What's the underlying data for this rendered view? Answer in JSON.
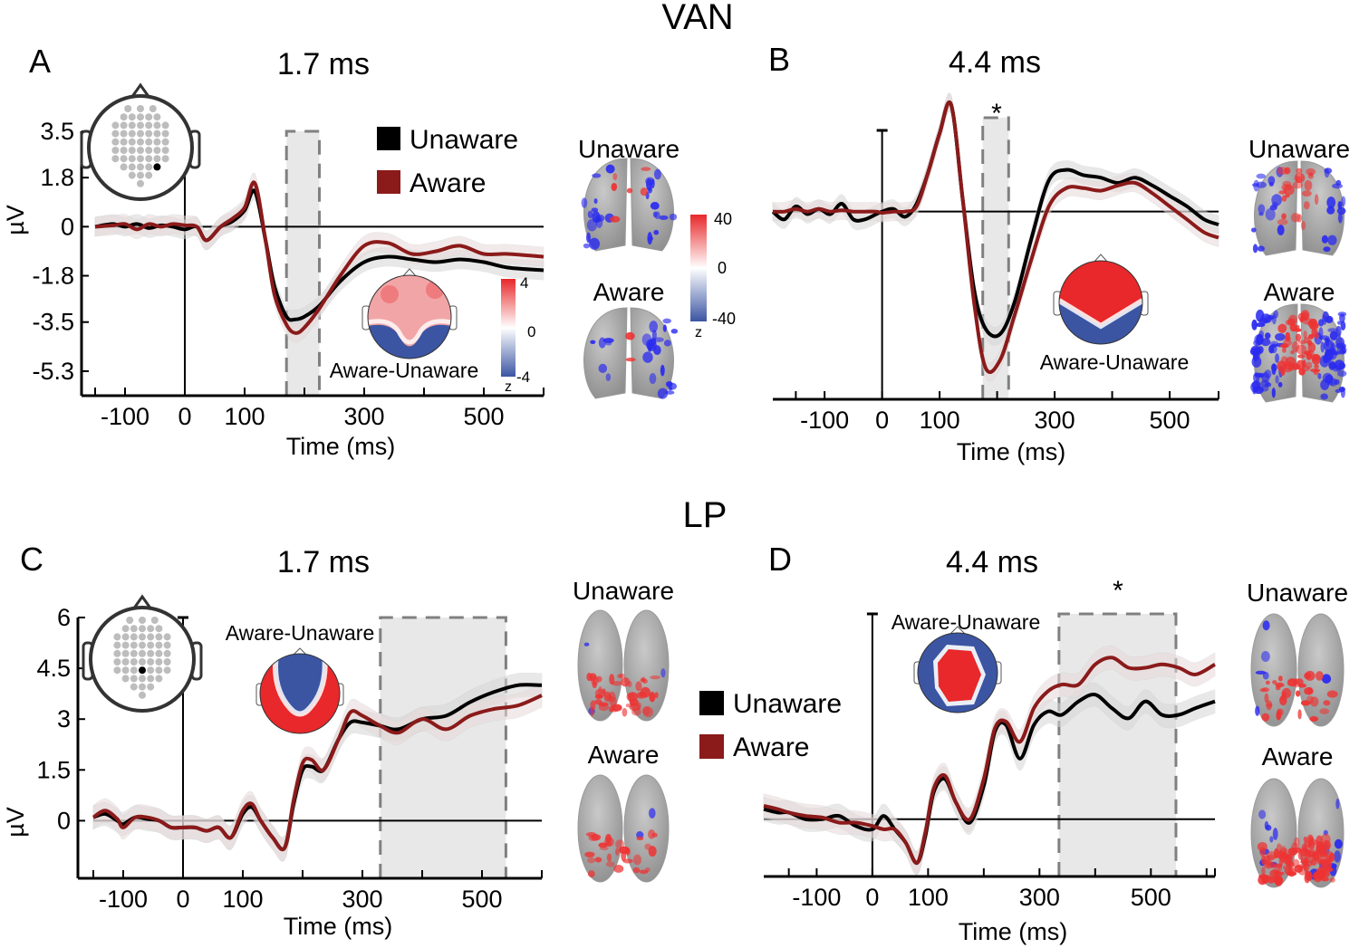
{
  "figure": {
    "group_titles": {
      "top": "VAN",
      "bottom": "LP"
    },
    "legend": {
      "unaware": "Unaware",
      "aware": "Aware"
    },
    "colors": {
      "unaware": "#000000",
      "aware": "#8b1a1a",
      "window_fill": "#e8e8e8",
      "window_stroke": "#808080",
      "topo_red": "#e8282a",
      "topo_blue": "#3b55a3",
      "brain_gray": "#a9a9a9",
      "source_blue": "#2b2bf0"
    },
    "topo_label": "Aware-Unaware",
    "brain_labels": {
      "unaware": "Unaware",
      "aware": "Aware"
    },
    "colorbar_small": {
      "max": "4",
      "mid": "0",
      "min": "-4",
      "unit": "z"
    },
    "colorbar_large": {
      "max": "40",
      "mid": "0",
      "min": "-40",
      "unit": "z"
    }
  },
  "chart_data": [
    {
      "panel": "A",
      "type": "line",
      "title": "1.7 ms",
      "xlabel": "Time (ms)",
      "ylabel": "µV",
      "xlim": [
        -150,
        600
      ],
      "ylim": [
        -6.2,
        3.5
      ],
      "x_ticks": [
        "-100",
        "0",
        "100",
        "300",
        "500"
      ],
      "y_ticks": [
        "3.5",
        "1.8",
        "0",
        "-1.8",
        "-3.5",
        "-5.3"
      ],
      "significance_window_ms": [
        170,
        225
      ],
      "significant": false,
      "legend": "top-right",
      "series": [
        {
          "name": "Unaware",
          "x": [
            -150,
            -120,
            -100,
            -80,
            -60,
            -40,
            -20,
            0,
            20,
            36,
            60,
            80,
            100,
            117,
            135,
            150,
            170,
            185,
            200,
            225,
            260,
            300,
            340,
            380,
            420,
            460,
            500,
            540,
            600
          ],
          "y": [
            0,
            0.1,
            0,
            0.1,
            -0.05,
            0.05,
            0,
            -0.1,
            0,
            -0.5,
            0,
            0.2,
            0.6,
            1.3,
            -0.5,
            -2.2,
            -3.3,
            -3.4,
            -3.3,
            -2.9,
            -2.0,
            -1.3,
            -1.1,
            -1.2,
            -1.3,
            -1.2,
            -1.3,
            -1.5,
            -1.6
          ]
        },
        {
          "name": "Aware",
          "x": [
            -150,
            -120,
            -100,
            -80,
            -60,
            -40,
            -20,
            0,
            20,
            36,
            60,
            80,
            100,
            117,
            135,
            150,
            170,
            185,
            200,
            225,
            260,
            300,
            340,
            380,
            420,
            460,
            500,
            540,
            600
          ],
          "y": [
            0,
            0.05,
            0.1,
            -0.1,
            0.1,
            0.0,
            0.1,
            0.05,
            0,
            -0.5,
            0,
            0.3,
            0.7,
            1.6,
            -0.5,
            -2.5,
            -3.6,
            -3.9,
            -3.7,
            -3.0,
            -1.8,
            -0.7,
            -0.6,
            -1.0,
            -0.9,
            -0.7,
            -1.0,
            -1.0,
            -1.1
          ]
        }
      ],
      "electrode": "right parieto-occipital"
    },
    {
      "panel": "B",
      "type": "line",
      "title": "4.4 ms",
      "xlabel": "Time (ms)",
      "ylabel": "",
      "xlim": [
        -190,
        585
      ],
      "ylim": [
        -7.2,
        3.6
      ],
      "x_ticks": [
        "-100",
        "0",
        "100",
        "300",
        "500"
      ],
      "y_ticks": [],
      "significance_window_ms": [
        175,
        220
      ],
      "significant": true,
      "annotation": "*",
      "series": [
        {
          "name": "Unaware",
          "x": [
            -190,
            -170,
            -150,
            -130,
            -110,
            -90,
            -70,
            -50,
            -30,
            -10,
            0,
            20,
            40,
            60,
            80,
            100,
            120,
            140,
            160,
            180,
            205,
            230,
            260,
            290,
            320,
            350,
            380,
            410,
            440,
            470,
            500,
            530,
            560,
            585
          ],
          "y": [
            0,
            -0.3,
            0.2,
            -0.1,
            0.1,
            -0.1,
            0.3,
            -0.3,
            -0.3,
            -0.1,
            0,
            0.1,
            -0.2,
            0.3,
            1.5,
            3.0,
            4.1,
            0.5,
            -3.0,
            -4.5,
            -4.7,
            -3.5,
            -1.0,
            1.2,
            1.6,
            1.4,
            1.3,
            1.1,
            1.3,
            1.0,
            0.6,
            0.2,
            -0.3,
            -0.5
          ]
        },
        {
          "name": "Aware",
          "x": [
            -190,
            -170,
            -150,
            -130,
            -110,
            -90,
            -70,
            -50,
            -30,
            -10,
            0,
            20,
            40,
            60,
            80,
            100,
            120,
            140,
            160,
            180,
            205,
            230,
            260,
            290,
            320,
            350,
            380,
            410,
            440,
            470,
            500,
            530,
            560,
            585
          ],
          "y": [
            0,
            0,
            0.1,
            0,
            0.1,
            0,
            0.05,
            0,
            0,
            0,
            -0.05,
            0,
            0,
            0.2,
            1.5,
            3.0,
            4.1,
            0.5,
            -3.5,
            -6.0,
            -5.7,
            -4.0,
            -1.8,
            0.2,
            0.9,
            0.9,
            0.8,
            1.0,
            1.1,
            0.7,
            0.2,
            -0.3,
            -0.8,
            -1.0
          ]
        }
      ]
    },
    {
      "panel": "C",
      "type": "line",
      "title": "1.7 ms",
      "xlabel": "Time (ms)",
      "ylabel": "µV",
      "xlim": [
        -150,
        600
      ],
      "ylim": [
        -1.7,
        6
      ],
      "x_ticks": [
        "-100",
        "0",
        "100",
        "300",
        "500"
      ],
      "y_ticks": [
        "6",
        "4.5",
        "3",
        "1.5",
        "0"
      ],
      "significance_window_ms": [
        330,
        540
      ],
      "significant": false,
      "series": [
        {
          "name": "Unaware",
          "x": [
            -150,
            -130,
            -110,
            -100,
            -80,
            -60,
            -40,
            -20,
            0,
            20,
            40,
            60,
            80,
            100,
            115,
            130,
            150,
            170,
            185,
            200,
            215,
            235,
            260,
            280,
            300,
            330,
            360,
            400,
            440,
            480,
            520,
            560,
            600
          ],
          "y": [
            0.1,
            0.2,
            0,
            -0.1,
            0.1,
            0.05,
            0,
            -0.2,
            -0.2,
            -0.2,
            -0.3,
            -0.2,
            -0.5,
            0.2,
            0.4,
            0.0,
            -0.5,
            -0.8,
            0.5,
            1.5,
            1.6,
            1.5,
            2.4,
            2.9,
            2.9,
            2.8,
            2.7,
            3.0,
            3.1,
            3.5,
            3.8,
            4.0,
            4.0
          ]
        },
        {
          "name": "Aware",
          "x": [
            -150,
            -130,
            -110,
            -100,
            -80,
            -60,
            -40,
            -20,
            0,
            20,
            40,
            60,
            80,
            100,
            115,
            130,
            150,
            170,
            185,
            200,
            215,
            235,
            260,
            280,
            300,
            330,
            360,
            400,
            440,
            480,
            520,
            560,
            600
          ],
          "y": [
            0.1,
            0.3,
            0.05,
            -0.2,
            0.1,
            0.1,
            0.0,
            -0.2,
            -0.2,
            -0.2,
            -0.3,
            -0.2,
            -0.5,
            0.3,
            0.5,
            0.0,
            -0.5,
            -0.8,
            0.6,
            1.7,
            1.8,
            1.5,
            2.4,
            3.2,
            3.1,
            2.8,
            2.6,
            3.0,
            2.7,
            3.1,
            3.3,
            3.4,
            3.7
          ]
        }
      ],
      "electrode": "central-parietal midline"
    },
    {
      "panel": "D",
      "type": "line",
      "title": "4.4 ms",
      "xlabel": "Time (ms)",
      "ylabel": "",
      "xlim": [
        -195,
        615
      ],
      "ylim": [
        -1.7,
        6.1
      ],
      "x_ticks": [
        "-100",
        "0",
        "100",
        "300",
        "500"
      ],
      "y_ticks": [],
      "significance_window_ms": [
        335,
        545
      ],
      "significant": true,
      "annotation": "*",
      "legend": "left",
      "series": [
        {
          "name": "Unaware",
          "x": [
            -195,
            -170,
            -150,
            -120,
            -90,
            -60,
            -30,
            0,
            20,
            40,
            60,
            80,
            95,
            110,
            130,
            150,
            175,
            200,
            220,
            240,
            265,
            290,
            315,
            340,
            370,
            400,
            430,
            460,
            490,
            520,
            550,
            580,
            615
          ],
          "y": [
            0.3,
            0.2,
            0.2,
            0,
            0,
            0.1,
            -0.2,
            -0.3,
            0.1,
            -0.3,
            -0.7,
            -1.3,
            -0.5,
            0.8,
            1.2,
            0.5,
            -0.1,
            1.0,
            2.6,
            2.8,
            1.8,
            2.8,
            3.2,
            3.1,
            3.5,
            3.7,
            3.3,
            3.0,
            3.5,
            3.1,
            3.1,
            3.3,
            3.5
          ]
        },
        {
          "name": "Aware",
          "x": [
            -195,
            -170,
            -150,
            -120,
            -90,
            -60,
            -30,
            0,
            20,
            40,
            60,
            80,
            95,
            110,
            130,
            150,
            175,
            200,
            220,
            240,
            265,
            290,
            315,
            340,
            370,
            400,
            430,
            460,
            490,
            520,
            550,
            580,
            615
          ],
          "y": [
            0.4,
            0.3,
            0.2,
            0.1,
            0.05,
            -0.1,
            -0.1,
            -0.2,
            -0.3,
            -0.3,
            -0.7,
            -1.3,
            -0.4,
            0.9,
            1.3,
            0.5,
            0.0,
            1.2,
            2.7,
            2.9,
            2.3,
            3.3,
            3.8,
            4.0,
            4.0,
            4.6,
            4.8,
            4.5,
            4.5,
            4.6,
            4.5,
            4.3,
            4.6
          ]
        }
      ]
    }
  ]
}
